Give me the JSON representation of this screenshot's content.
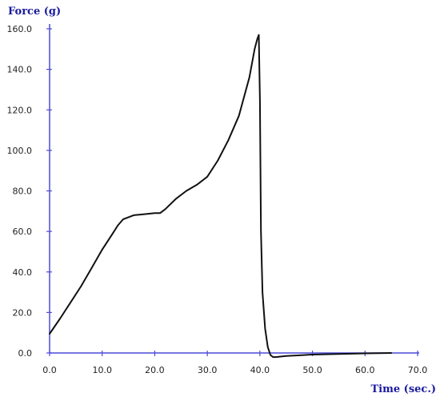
{
  "chart_data": {
    "type": "line",
    "title": "",
    "ylabel": "Force (g)",
    "xlabel": "Time (sec.)",
    "xlim": [
      0,
      70
    ],
    "ylim": [
      0,
      160
    ],
    "x_ticks": [
      "0.0",
      "10.0",
      "20.0",
      "30.0",
      "40.0",
      "50.0",
      "60.0",
      "70.0"
    ],
    "y_ticks": [
      "0.0",
      "20.0",
      "40.0",
      "60.0",
      "80.0",
      "100.0",
      "120.0",
      "140.0",
      "160.0"
    ],
    "grid": false,
    "legend": "none",
    "colors": {
      "axis": "#4b4bd8",
      "line": "#111111",
      "label": "#1a1aa0"
    },
    "series": [
      {
        "x": [
          0,
          2,
          4,
          6,
          8,
          10,
          12,
          13,
          14,
          16,
          18,
          20,
          21,
          22,
          24,
          26,
          28,
          30,
          32,
          34,
          36,
          38,
          39,
          39.5,
          39.8,
          40,
          40.2,
          40.5,
          41,
          41.5,
          42,
          42.5,
          43,
          45,
          50,
          55,
          60,
          65
        ],
        "y": [
          9.5,
          17,
          25,
          33,
          42,
          51,
          59,
          63,
          66,
          68,
          68.5,
          69,
          69,
          71,
          76,
          80,
          83,
          87,
          95,
          105,
          117,
          136,
          150,
          155,
          157,
          125,
          60,
          30,
          12,
          3,
          -1,
          -2,
          -2,
          -1.5,
          -0.8,
          -0.5,
          -0.2,
          0
        ]
      }
    ]
  }
}
